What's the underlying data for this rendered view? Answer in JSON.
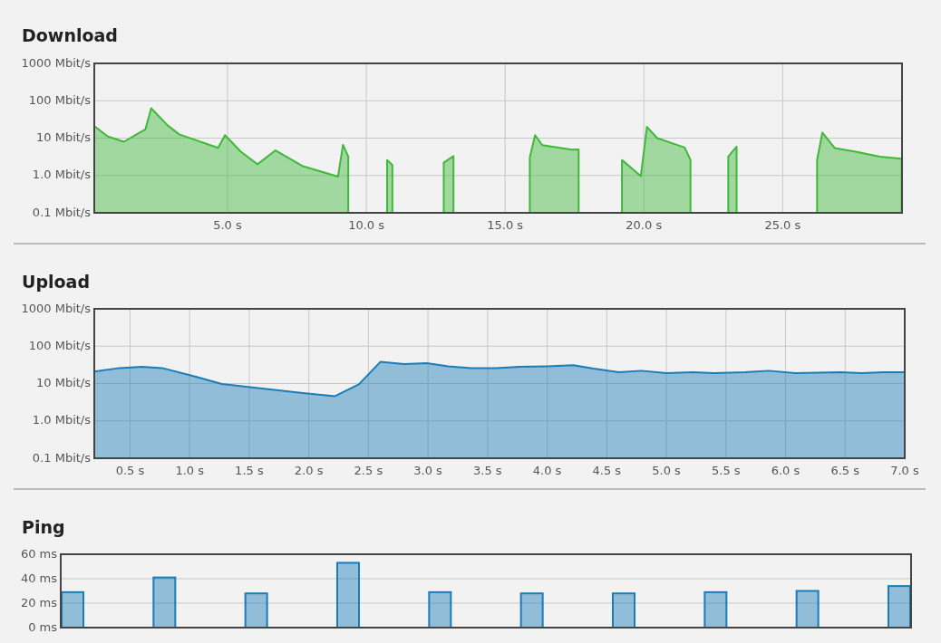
{
  "chart_data": [
    {
      "type": "area",
      "title": "Download",
      "log": "y",
      "grid": true,
      "xlim": [
        0.2,
        29.3
      ],
      "xticks": [
        {
          "value": 5,
          "label": "5.0 s"
        },
        {
          "value": 10,
          "label": "10.0 s"
        },
        {
          "value": 15,
          "label": "15.0 s"
        },
        {
          "value": 20,
          "label": "20.0 s"
        },
        {
          "value": 25,
          "label": "25.0 s"
        }
      ],
      "ylim": [
        0.1,
        1000
      ],
      "yticks": [
        {
          "value": 0.1,
          "label": "0.1 Mbit/s"
        },
        {
          "value": 1,
          "label": "1.0 Mbit/s"
        },
        {
          "value": 10,
          "label": "10 Mbit/s"
        },
        {
          "value": 100,
          "label": "100 Mbit/s"
        },
        {
          "value": 1000,
          "label": "1000 Mbit/s"
        }
      ],
      "series": [
        {
          "color": "#3fb93a",
          "x": [
            0.2,
            0.69,
            1.27,
            1.75,
            2.04,
            2.25,
            2.84,
            3.26,
            4.66,
            4.91,
            5.47,
            6.08,
            6.73,
            7.69,
            8.98,
            9.16,
            9.35
          ],
          "values": [
            21,
            11,
            8,
            13,
            17,
            63,
            22,
            12.6,
            5.5,
            12,
            4.4,
            2.0,
            4.7,
            1.8,
            0.93,
            6.6,
            3.2
          ]
        },
        {
          "color": "#3fb93a",
          "x": [
            10.75,
            10.94
          ],
          "values": [
            2.6,
            1.9
          ]
        },
        {
          "color": "#3fb93a",
          "x": [
            12.79,
            13.14
          ],
          "values": [
            2.2,
            3.3
          ]
        },
        {
          "color": "#3fb93a",
          "x": [
            15.89,
            16.08,
            16.34,
            17.4,
            17.65
          ],
          "values": [
            3.0,
            12,
            6.5,
            4.9,
            5.0
          ]
        },
        {
          "color": "#3fb93a",
          "x": [
            19.21,
            19.89,
            20.11,
            20.48,
            21.47,
            21.68
          ],
          "values": [
            2.6,
            0.96,
            20,
            10,
            5.6,
            2.6
          ]
        },
        {
          "color": "#3fb93a",
          "x": [
            23.04,
            23.34
          ],
          "values": [
            3.2,
            5.9
          ]
        },
        {
          "color": "#3fb93a",
          "x": [
            26.24,
            26.43,
            26.88,
            27.72,
            28.5,
            29.29
          ],
          "values": [
            2.6,
            14,
            5.4,
            4.2,
            3.2,
            2.8
          ]
        }
      ]
    },
    {
      "type": "area",
      "title": "Upload",
      "log": "y",
      "grid": true,
      "xlim": [
        0.2,
        7.0
      ],
      "xticks": [
        {
          "value": 0.5,
          "label": "0.5 s"
        },
        {
          "value": 1,
          "label": "1.0 s"
        },
        {
          "value": 1.5,
          "label": "1.5 s"
        },
        {
          "value": 2,
          "label": "2.0 s"
        },
        {
          "value": 2.5,
          "label": "2.5 s"
        },
        {
          "value": 3,
          "label": "3.0 s"
        },
        {
          "value": 3.5,
          "label": "3.5 s"
        },
        {
          "value": 4,
          "label": "4.0 s"
        },
        {
          "value": 4.5,
          "label": "4.5 s"
        },
        {
          "value": 5,
          "label": "5.0 s"
        },
        {
          "value": 5.5,
          "label": "5.5 s"
        },
        {
          "value": 6,
          "label": "6.0 s"
        },
        {
          "value": 6.5,
          "label": "6.5 s"
        },
        {
          "value": 7,
          "label": "7.0 s"
        }
      ],
      "ylim": [
        0.1,
        1000
      ],
      "yticks": [
        {
          "value": 0.1,
          "label": "0.1 Mbit/s"
        },
        {
          "value": 1,
          "label": "1.0 Mbit/s"
        },
        {
          "value": 10,
          "label": "10 Mbit/s"
        },
        {
          "value": 100,
          "label": "100 Mbit/s"
        },
        {
          "value": 1000,
          "label": "1000 Mbit/s"
        }
      ],
      "series": [
        {
          "color": "#1a7db8",
          "x": [
            0.2,
            0.41,
            0.6,
            0.77,
            1.06,
            1.27,
            1.49,
            1.95,
            2.22,
            2.42,
            2.6,
            2.8,
            2.99,
            3.17,
            3.36,
            3.57,
            3.77,
            4.0,
            4.22,
            4.39,
            4.6,
            4.79,
            5.0,
            5.22,
            5.4,
            5.66,
            5.86,
            6.08,
            6.46,
            6.64,
            6.82,
            7.0
          ],
          "values": [
            21,
            26,
            28,
            26,
            15,
            9.7,
            8.1,
            5.6,
            4.6,
            9.5,
            38,
            33,
            35,
            29,
            26,
            26,
            28,
            29,
            31,
            25,
            20,
            22,
            19,
            20,
            19,
            20,
            22,
            19,
            20,
            19,
            20,
            20
          ]
        }
      ]
    },
    {
      "type": "bar",
      "title": "Ping",
      "grid": "y",
      "tick_labels": "y",
      "categories": [
        null,
        null,
        null,
        null,
        null,
        null,
        null,
        null,
        null,
        null
      ],
      "ylim": [
        0,
        60
      ],
      "yticks": [
        {
          "value": 0,
          "label": "0 ms"
        },
        {
          "value": 20,
          "label": "20 ms"
        },
        {
          "value": 40,
          "label": "40 ms"
        },
        {
          "value": 60,
          "label": "60 ms"
        }
      ],
      "series": [
        {
          "color": "#1a7db8",
          "values": [
            29,
            41,
            28,
            53,
            29,
            28,
            28,
            29,
            30,
            34
          ]
        }
      ]
    }
  ]
}
